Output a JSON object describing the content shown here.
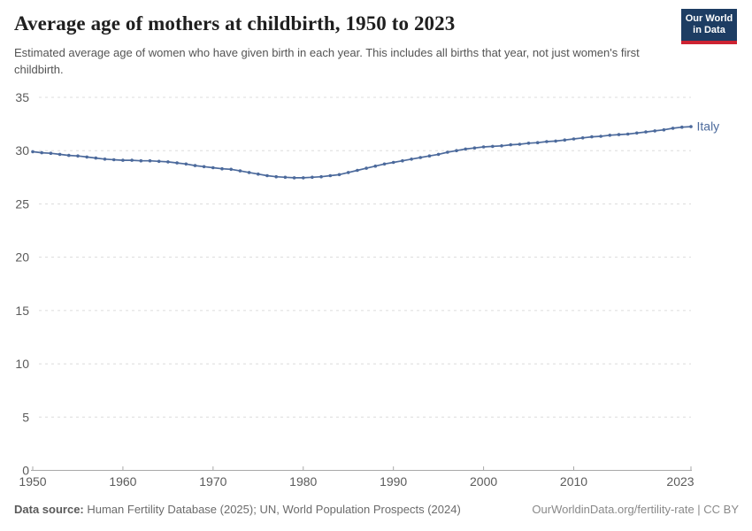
{
  "header": {
    "title": "Average age of mothers at childbirth, 1950 to 2023",
    "subtitle": "Estimated average age of women who have given birth in each year. This includes all births that year, not just women's first childbirth.",
    "logo": {
      "line1": "Our World",
      "line2": "in Data",
      "bg_color": "#1d3d63",
      "accent_color": "#cd2332"
    }
  },
  "chart_data": {
    "type": "line",
    "title": "Average age of mothers at childbirth, 1950 to 2023",
    "xlabel": "",
    "ylabel": "",
    "xlim": [
      1950,
      2023
    ],
    "ylim": [
      0,
      35
    ],
    "x_ticks": [
      1950,
      1960,
      1970,
      1980,
      1990,
      2000,
      2010,
      2023
    ],
    "y_ticks": [
      0,
      5,
      10,
      15,
      20,
      25,
      30,
      35
    ],
    "grid": "horizontal-dashed",
    "legend_position": "end-of-line-label",
    "series": [
      {
        "name": "Italy",
        "color": "#4c6a9c",
        "x": [
          1950,
          1951,
          1952,
          1953,
          1954,
          1955,
          1956,
          1957,
          1958,
          1959,
          1960,
          1961,
          1962,
          1963,
          1964,
          1965,
          1966,
          1967,
          1968,
          1969,
          1970,
          1971,
          1972,
          1973,
          1974,
          1975,
          1976,
          1977,
          1978,
          1979,
          1980,
          1981,
          1982,
          1983,
          1984,
          1985,
          1986,
          1987,
          1988,
          1989,
          1990,
          1991,
          1992,
          1993,
          1994,
          1995,
          1996,
          1997,
          1998,
          1999,
          2000,
          2001,
          2002,
          2003,
          2004,
          2005,
          2006,
          2007,
          2008,
          2009,
          2010,
          2011,
          2012,
          2013,
          2014,
          2015,
          2016,
          2017,
          2018,
          2019,
          2020,
          2021,
          2022,
          2023
        ],
        "values": [
          29.9,
          29.8,
          29.75,
          29.65,
          29.55,
          29.5,
          29.4,
          29.3,
          29.2,
          29.15,
          29.1,
          29.1,
          29.05,
          29.05,
          29.0,
          28.95,
          28.85,
          28.75,
          28.6,
          28.5,
          28.4,
          28.3,
          28.25,
          28.1,
          27.95,
          27.8,
          27.65,
          27.55,
          27.5,
          27.45,
          27.45,
          27.5,
          27.55,
          27.65,
          27.75,
          27.95,
          28.15,
          28.35,
          28.55,
          28.75,
          28.9,
          29.05,
          29.2,
          29.35,
          29.5,
          29.65,
          29.85,
          30.0,
          30.15,
          30.25,
          30.35,
          30.4,
          30.45,
          30.55,
          30.6,
          30.7,
          30.75,
          30.85,
          30.9,
          31.0,
          31.1,
          31.2,
          31.3,
          31.35,
          31.45,
          31.5,
          31.55,
          31.65,
          31.75,
          31.85,
          31.95,
          32.1,
          32.2,
          32.25
        ]
      }
    ]
  },
  "footer": {
    "source_label": "Data source:",
    "source_text": " Human Fertility Database (2025); UN, World Population Prospects (2024)",
    "credit": "OurWorldinData.org/fertility-rate | CC BY"
  }
}
